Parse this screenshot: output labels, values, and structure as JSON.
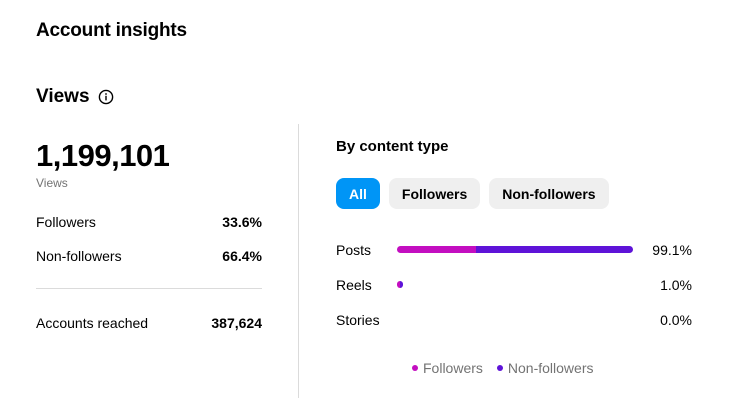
{
  "page": {
    "title": "Account insights"
  },
  "views": {
    "title": "Views",
    "info_icon": "info-icon",
    "total": "1,199,101",
    "total_label": "Views",
    "stats": [
      {
        "label": "Followers",
        "value": "33.6%"
      },
      {
        "label": "Non-followers",
        "value": "66.4%"
      }
    ],
    "reached": {
      "label": "Accounts reached",
      "value": "387,624"
    }
  },
  "content_type": {
    "title": "By content type",
    "filters": [
      {
        "label": "All",
        "active": true
      },
      {
        "label": "Followers",
        "active": false
      },
      {
        "label": "Non-followers",
        "active": false
      }
    ]
  },
  "chart_data": {
    "type": "bar",
    "orientation": "horizontal",
    "stacked": true,
    "categories": [
      "Posts",
      "Reels",
      "Stories"
    ],
    "totals_label": [
      "99.1%",
      "1.0%",
      "0.0%"
    ],
    "totals": [
      99.1,
      1.0,
      0.0
    ],
    "series": [
      {
        "name": "Followers",
        "color": "#c30ec0",
        "values": [
          33.0,
          0.2,
          0.0
        ]
      },
      {
        "name": "Non-followers",
        "color": "#5e13d8",
        "values": [
          66.1,
          0.8,
          0.0
        ]
      }
    ],
    "xlim": [
      0,
      100
    ],
    "legend": "bottom"
  }
}
